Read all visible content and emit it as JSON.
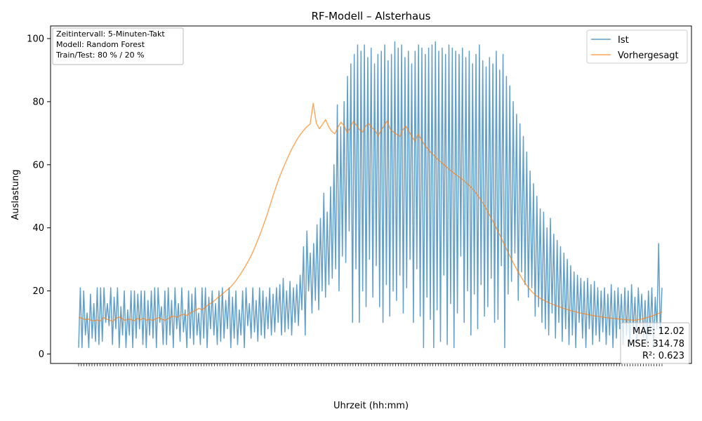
{
  "chart_data": {
    "type": "line",
    "title": "RF-Modell – Alsterhaus",
    "xlabel": "Uhrzeit (hh:mm)",
    "ylabel": "Auslastung",
    "ylim": [
      -3,
      104
    ],
    "yticks": [
      0,
      20,
      40,
      60,
      80,
      100
    ],
    "grid": false,
    "legend_position": "top-right",
    "series": [
      {
        "name": "Ist",
        "color": "#1f77b4",
        "alpha": 0.7,
        "values": [
          2,
          21,
          2,
          20,
          6,
          13,
          2,
          19,
          5,
          16,
          4,
          21,
          3,
          21,
          4,
          21,
          10,
          16,
          9,
          21,
          3,
          18,
          8,
          21,
          2,
          15,
          6,
          20,
          2,
          14,
          6,
          20,
          2,
          20,
          5,
          19,
          8,
          20,
          3,
          20,
          2,
          17,
          6,
          20,
          5,
          21,
          2,
          21,
          10,
          15,
          3,
          20,
          3,
          21,
          6,
          17,
          2,
          21,
          8,
          16,
          4,
          21,
          7,
          14,
          2,
          20,
          5,
          19,
          3,
          21,
          6,
          13,
          3,
          21,
          5,
          21,
          2,
          18,
          8,
          20,
          6,
          16,
          3,
          20,
          4,
          21,
          5,
          17,
          8,
          21,
          2,
          18,
          5,
          20,
          3,
          14,
          6,
          20,
          2,
          21,
          9,
          16,
          5,
          21,
          7,
          17,
          4,
          21,
          6,
          20,
          5,
          18,
          8,
          21,
          6,
          19,
          7,
          21,
          10,
          22,
          6,
          24,
          7,
          20,
          8,
          23,
          6,
          21,
          10,
          22,
          9,
          25,
          14,
          34,
          6,
          39,
          20,
          32,
          13,
          35,
          17,
          41,
          14,
          43,
          20,
          51,
          18,
          45,
          22,
          53,
          24,
          60,
          27,
          79,
          20,
          72,
          31,
          80,
          29,
          88,
          39,
          92,
          10,
          95,
          27,
          98,
          10,
          96,
          20,
          98,
          15,
          94,
          30,
          97,
          18,
          92,
          28,
          95,
          15,
          96,
          10,
          98,
          22,
          93,
          12,
          95,
          20,
          99,
          17,
          97,
          25,
          98,
          13,
          94,
          21,
          96,
          30,
          92,
          10,
          96,
          27,
          98,
          12,
          97,
          2,
          95,
          18,
          97,
          11,
          98,
          2,
          99,
          14,
          96,
          4,
          97,
          25,
          95,
          3,
          98,
          16,
          97,
          2,
          96,
          13,
          95,
          31,
          97,
          10,
          94,
          20,
          96,
          6,
          92,
          19,
          95,
          8,
          98,
          22,
          93,
          12,
          91,
          15,
          94,
          24,
          92,
          10,
          96,
          11,
          90,
          28,
          95,
          2,
          88,
          19,
          85,
          23,
          80,
          32,
          76,
          17,
          73,
          26,
          69,
          22,
          64,
          18,
          58,
          21,
          54,
          12,
          50,
          15,
          46,
          10,
          45,
          8,
          40,
          6,
          43,
          13,
          38,
          5,
          36,
          10,
          34,
          4,
          32,
          8,
          30,
          3,
          28,
          6,
          26,
          2,
          25,
          10,
          24,
          5,
          23,
          2,
          24,
          8,
          22,
          3,
          23,
          6,
          21,
          4,
          20,
          7,
          21,
          3,
          19,
          6,
          22,
          2,
          20,
          5,
          21,
          8,
          19,
          3,
          21,
          6,
          20,
          2,
          22,
          7,
          18,
          4,
          21,
          9,
          19,
          5,
          17,
          3,
          20,
          6,
          21,
          2,
          18,
          8,
          35,
          6,
          21
        ]
      },
      {
        "name": "Vorhergesagt",
        "color": "#ff7f0e",
        "alpha": 0.7,
        "values": [
          11.5,
          11.4,
          10.9,
          11.1,
          10.7,
          10.5,
          10.8,
          10.4,
          11.6,
          11.0,
          10.8,
          10.3,
          11.2,
          11.7,
          11.3,
          10.6,
          11.1,
          10.9,
          10.5,
          11.3,
          10.8,
          11.4,
          10.7,
          11.0,
          10.6,
          11.2,
          11.5,
          11.0,
          10.7,
          11.2,
          11.8,
          12.0,
          11.6,
          12.3,
          12.6,
          12.2,
          12.9,
          13.4,
          13.9,
          14.5,
          14.0,
          14.8,
          15.6,
          16.2,
          16.9,
          17.8,
          18.5,
          19.4,
          20.2,
          21.0,
          22.1,
          23.3,
          24.7,
          26.2,
          27.8,
          29.5,
          31.4,
          33.6,
          36.0,
          38.5,
          41.2,
          44.0,
          47.1,
          50.2,
          53.1,
          55.9,
          58.3,
          60.6,
          62.8,
          64.9,
          66.7,
          68.4,
          69.8,
          71.0,
          72.1,
          72.9,
          79.5,
          73.2,
          71.4,
          72.8,
          74.3,
          72.1,
          70.6,
          69.8,
          71.9,
          73.5,
          72.4,
          70.2,
          71.7,
          73.8,
          72.6,
          71.1,
          70.4,
          72.3,
          73.1,
          71.8,
          70.9,
          69.2,
          70.8,
          72.5,
          73.9,
          71.2,
          70.4,
          69.7,
          68.9,
          71.0,
          72.3,
          70.6,
          68.9,
          67.4,
          69.8,
          68.1,
          66.4,
          65.2,
          64.0,
          63.1,
          62.0,
          61.2,
          60.3,
          59.5,
          58.6,
          57.8,
          57.0,
          56.3,
          55.6,
          54.8,
          53.9,
          53.0,
          51.9,
          50.7,
          49.3,
          47.8,
          46.1,
          44.3,
          42.5,
          40.6,
          38.6,
          36.6,
          34.5,
          32.5,
          30.5,
          28.6,
          26.7,
          25.0,
          23.4,
          22.0,
          20.7,
          19.6,
          18.7,
          18.0,
          17.4,
          16.9,
          16.4,
          16.0,
          15.6,
          15.2,
          14.9,
          14.5,
          14.2,
          13.9,
          13.6,
          13.4,
          13.1,
          12.9,
          12.7,
          12.5,
          12.3,
          12.1,
          12.0,
          11.8,
          11.7,
          11.5,
          11.4,
          11.3,
          11.2,
          11.1,
          11.0,
          10.9,
          10.8,
          10.8,
          10.7,
          10.8,
          11.0,
          11.2,
          11.5,
          11.8,
          12.1,
          12.5,
          12.9,
          13.3
        ]
      }
    ]
  },
  "infobox": {
    "line1": "Zeitintervall: 5-Minuten-Takt",
    "line2": "Modell: Random Forest",
    "line3": "Train/Test: 80 % / 20 %"
  },
  "metrics": {
    "mae": "MAE: 12.02",
    "mse": "MSE: 314.78",
    "r2": "R²: 0.623"
  }
}
